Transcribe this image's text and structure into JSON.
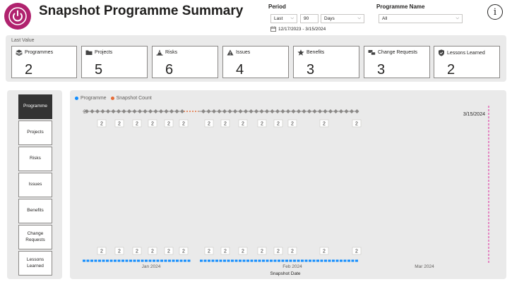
{
  "header": {
    "title": "Snapshot Programme Summary"
  },
  "filters": {
    "period_label": "Period",
    "period_mode": "Last",
    "period_count": "90",
    "period_unit": "Days",
    "date_range": "12/17/2023 - 3/15/2024",
    "programme_label": "Programme Name",
    "programme_value": "All"
  },
  "kpis": {
    "section_label": "Last Value",
    "items": [
      {
        "label": "Programmes",
        "value": "2",
        "icon": "layers-icon"
      },
      {
        "label": "Projects",
        "value": "5",
        "icon": "folder-icon"
      },
      {
        "label": "Risks",
        "value": "6",
        "icon": "cone-icon"
      },
      {
        "label": "Issues",
        "value": "4",
        "icon": "warning-icon"
      },
      {
        "label": "Benefits",
        "value": "3",
        "icon": "star-icon"
      },
      {
        "label": "Change Requests",
        "value": "3",
        "icon": "change-icon"
      },
      {
        "label": "Lessons Learned",
        "value": "2",
        "icon": "shield-check-icon"
      }
    ]
  },
  "nav": {
    "items": [
      "Programme",
      "Projects",
      "Risks",
      "Issues",
      "Benefits",
      "Change Requests",
      "Lessons Learned"
    ],
    "active": "Programme"
  },
  "chart": {
    "legend_programme": "Programme",
    "legend_snapshot": "Snapshot Count",
    "x_axis_title": "Snapshot Date",
    "date_marker": "3/15/2024",
    "colors": {
      "programme": "#118dff",
      "snapshot": "#e66c37",
      "gray": "#8a8886",
      "marker": "#e044a7"
    }
  },
  "chart_data": {
    "type": "line",
    "x_ticks": [
      "Jan 2024",
      "Feb 2024",
      "Mar 2024"
    ],
    "x_range": [
      "2023-12-17",
      "2024-03-15"
    ],
    "series": [
      {
        "name": "Programme",
        "values": [
          2,
          2,
          2,
          2,
          2,
          2,
          2,
          2,
          2,
          2,
          2,
          2,
          2,
          2
        ]
      },
      {
        "name": "Snapshot Count",
        "values": [
          2,
          2,
          2,
          2,
          2,
          2,
          2,
          2,
          2,
          2,
          2,
          2,
          2,
          2
        ]
      }
    ],
    "data_labels": [
      "2",
      "2",
      "2",
      "2",
      "2",
      "2",
      "2",
      "2",
      "2",
      "2",
      "2",
      "2",
      "2",
      "2"
    ]
  }
}
